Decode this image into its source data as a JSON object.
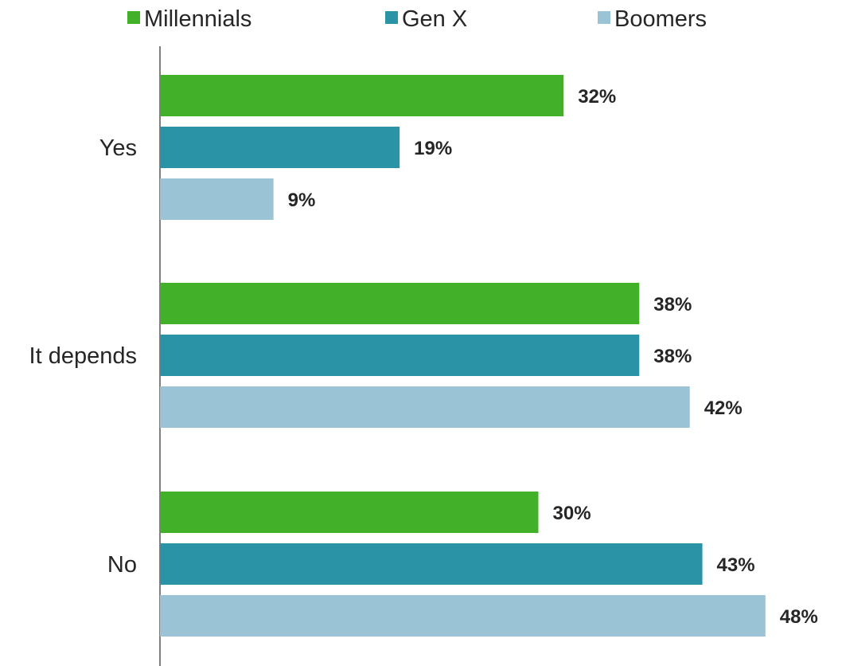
{
  "chart_data": {
    "type": "bar",
    "orientation": "horizontal",
    "categories": [
      "Yes",
      "It depends",
      "No"
    ],
    "series": [
      {
        "name": "Millennials",
        "color": "#43b02a",
        "values": [
          32,
          38,
          30
        ]
      },
      {
        "name": "Gen X",
        "color": "#2a93a5",
        "values": [
          19,
          38,
          43
        ]
      },
      {
        "name": "Boomers",
        "color": "#9ac3d6",
        "values": [
          9,
          42,
          48
        ]
      }
    ],
    "value_suffix": "%",
    "xlim": [
      0,
      50
    ],
    "grid": false,
    "legend_position": "top"
  }
}
